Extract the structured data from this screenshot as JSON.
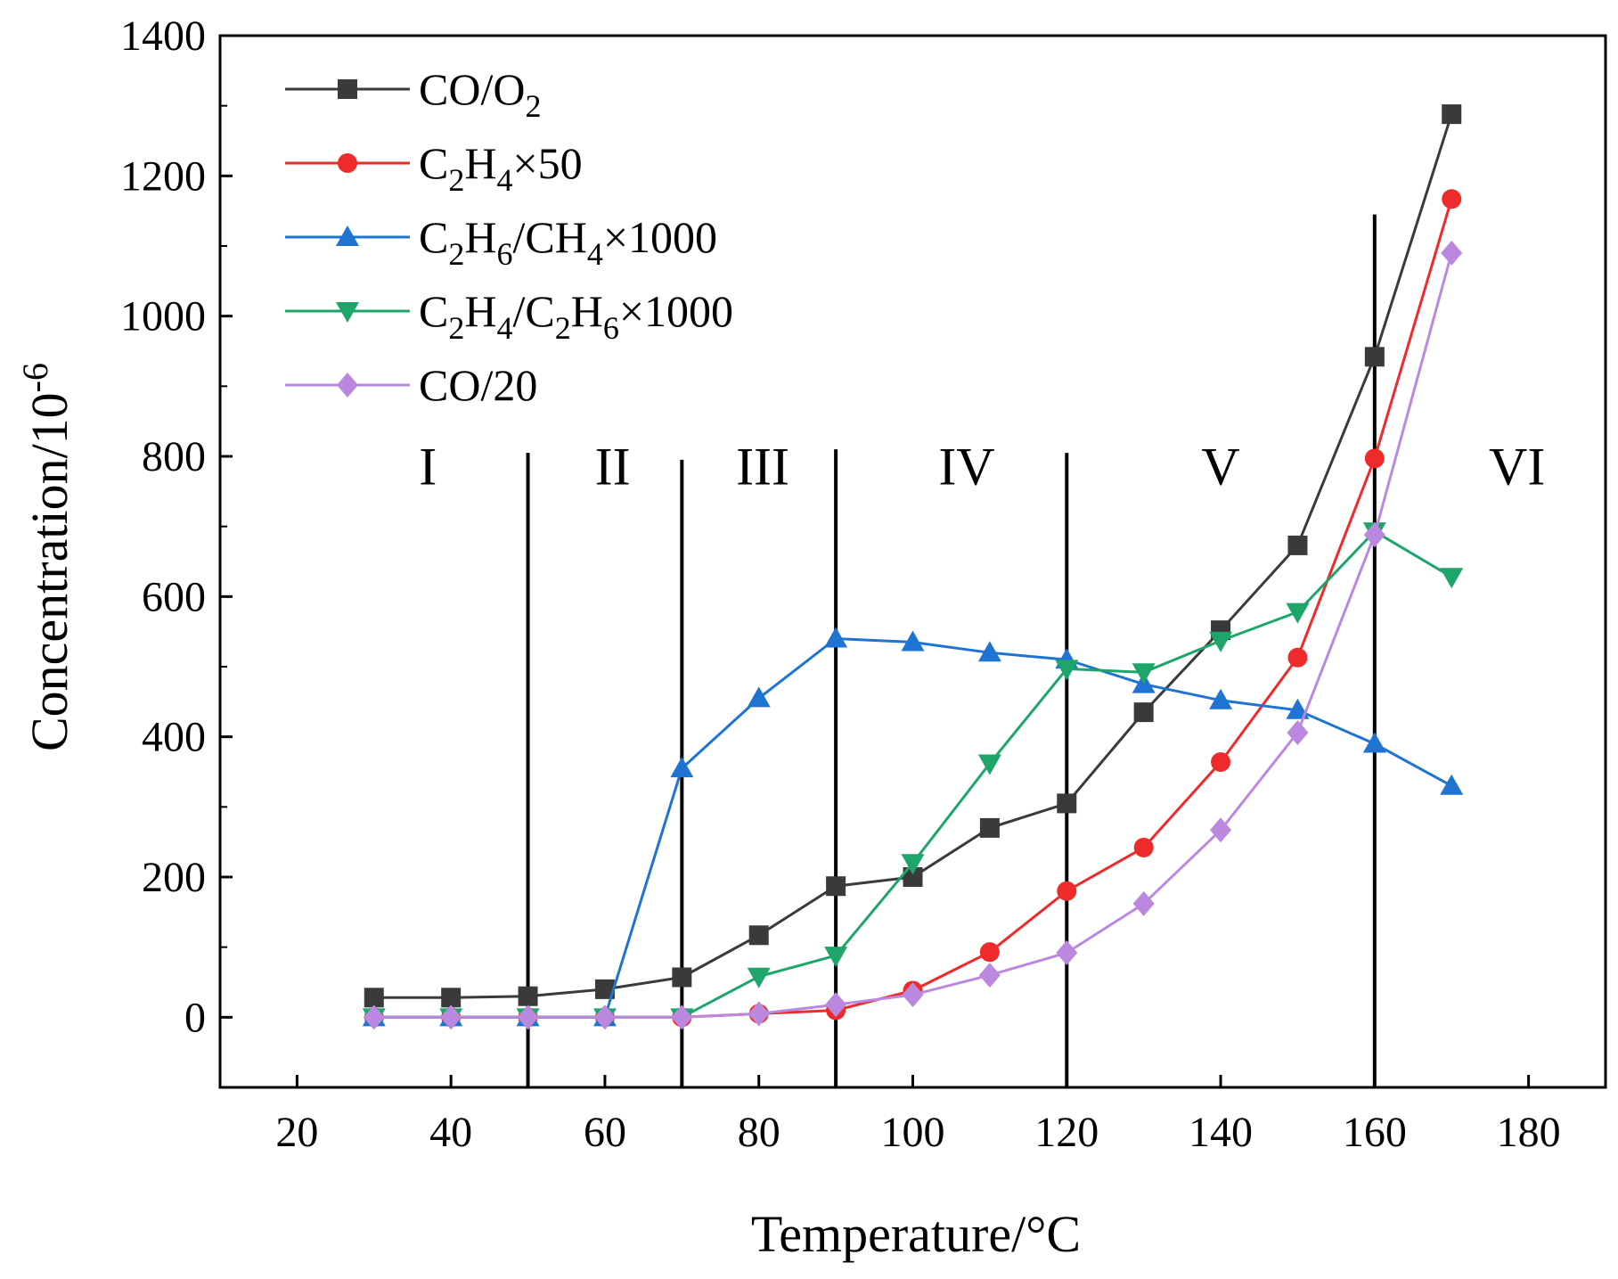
{
  "chart_data": {
    "type": "line",
    "xlabel": "Temperature/°C",
    "ylabel": "Concentration/10",
    "ylabel_sup": "-6",
    "xlim": [
      10,
      190
    ],
    "ylim": [
      -100,
      1400
    ],
    "xticks": [
      20,
      40,
      60,
      80,
      100,
      120,
      140,
      160,
      180
    ],
    "yticks": [
      0,
      200,
      400,
      600,
      800,
      1000,
      1200,
      1400
    ],
    "x": [
      30,
      40,
      50,
      60,
      70,
      80,
      90,
      100,
      110,
      120,
      130,
      140,
      150,
      160,
      170
    ],
    "legend_position": "top-left",
    "grid": false,
    "series": [
      {
        "id": "co-o2",
        "name_parts": [
          {
            "t": "CO/O"
          },
          {
            "t": "2",
            "sub": true
          }
        ],
        "color": "#3a3a3a",
        "marker": "square",
        "values": [
          28,
          28,
          30,
          40,
          57,
          117,
          187,
          200,
          270,
          305,
          435,
          552,
          673,
          942,
          1288
        ]
      },
      {
        "id": "c2h4",
        "name_parts": [
          {
            "t": "C"
          },
          {
            "t": "2",
            "sub": true
          },
          {
            "t": "H"
          },
          {
            "t": "4",
            "sub": true
          },
          {
            "t": "×50"
          }
        ],
        "color": "#ee2a2a",
        "marker": "circle",
        "values": [
          0,
          0,
          0,
          0,
          0,
          5,
          10,
          38,
          93,
          180,
          242,
          364,
          513,
          797,
          1167
        ]
      },
      {
        "id": "c2h6-ch4",
        "name_parts": [
          {
            "t": "C"
          },
          {
            "t": "2",
            "sub": true
          },
          {
            "t": "H"
          },
          {
            "t": "6",
            "sub": true
          },
          {
            "t": "/CH"
          },
          {
            "t": "4",
            "sub": true
          },
          {
            "t": "×1000"
          }
        ],
        "color": "#1f74d3",
        "marker": "triangle-up",
        "values": [
          0,
          0,
          0,
          0,
          355,
          455,
          540,
          535,
          520,
          510,
          475,
          452,
          438,
          390,
          330
        ]
      },
      {
        "id": "c2h4-c2h6",
        "name_parts": [
          {
            "t": "C"
          },
          {
            "t": "2",
            "sub": true
          },
          {
            "t": "H"
          },
          {
            "t": "4",
            "sub": true
          },
          {
            "t": "/C"
          },
          {
            "t": "2",
            "sub": true
          },
          {
            "t": "H"
          },
          {
            "t": "6",
            "sub": true
          },
          {
            "t": "×1000"
          }
        ],
        "color": "#1ea66a",
        "marker": "triangle-down",
        "values": [
          0,
          0,
          0,
          0,
          0,
          58,
          88,
          220,
          362,
          497,
          492,
          537,
          578,
          693,
          628
        ]
      },
      {
        "id": "co-20",
        "name_parts": [
          {
            "t": "CO/20"
          }
        ],
        "color": "#bb88e0",
        "marker": "diamond",
        "values": [
          0,
          0,
          0,
          0,
          0,
          5,
          18,
          32,
          60,
          92,
          162,
          267,
          406,
          688,
          1090
        ]
      }
    ],
    "region_lines": [
      {
        "x": 50,
        "y_top": 805
      },
      {
        "x": 70,
        "y_top": 795
      },
      {
        "x": 90,
        "y_top": 810
      },
      {
        "x": 120,
        "y_top": 805
      },
      {
        "x": 160,
        "y_top": 1145
      }
    ],
    "region_labels": [
      {
        "text": "I",
        "x": 37
      },
      {
        "text": "II",
        "x": 61
      },
      {
        "text": "III",
        "x": 80.5
      },
      {
        "text": "IV",
        "x": 107
      },
      {
        "text": "V",
        "x": 140
      },
      {
        "text": "VI",
        "x": 178.5
      }
    ],
    "region_label_y": 760
  }
}
